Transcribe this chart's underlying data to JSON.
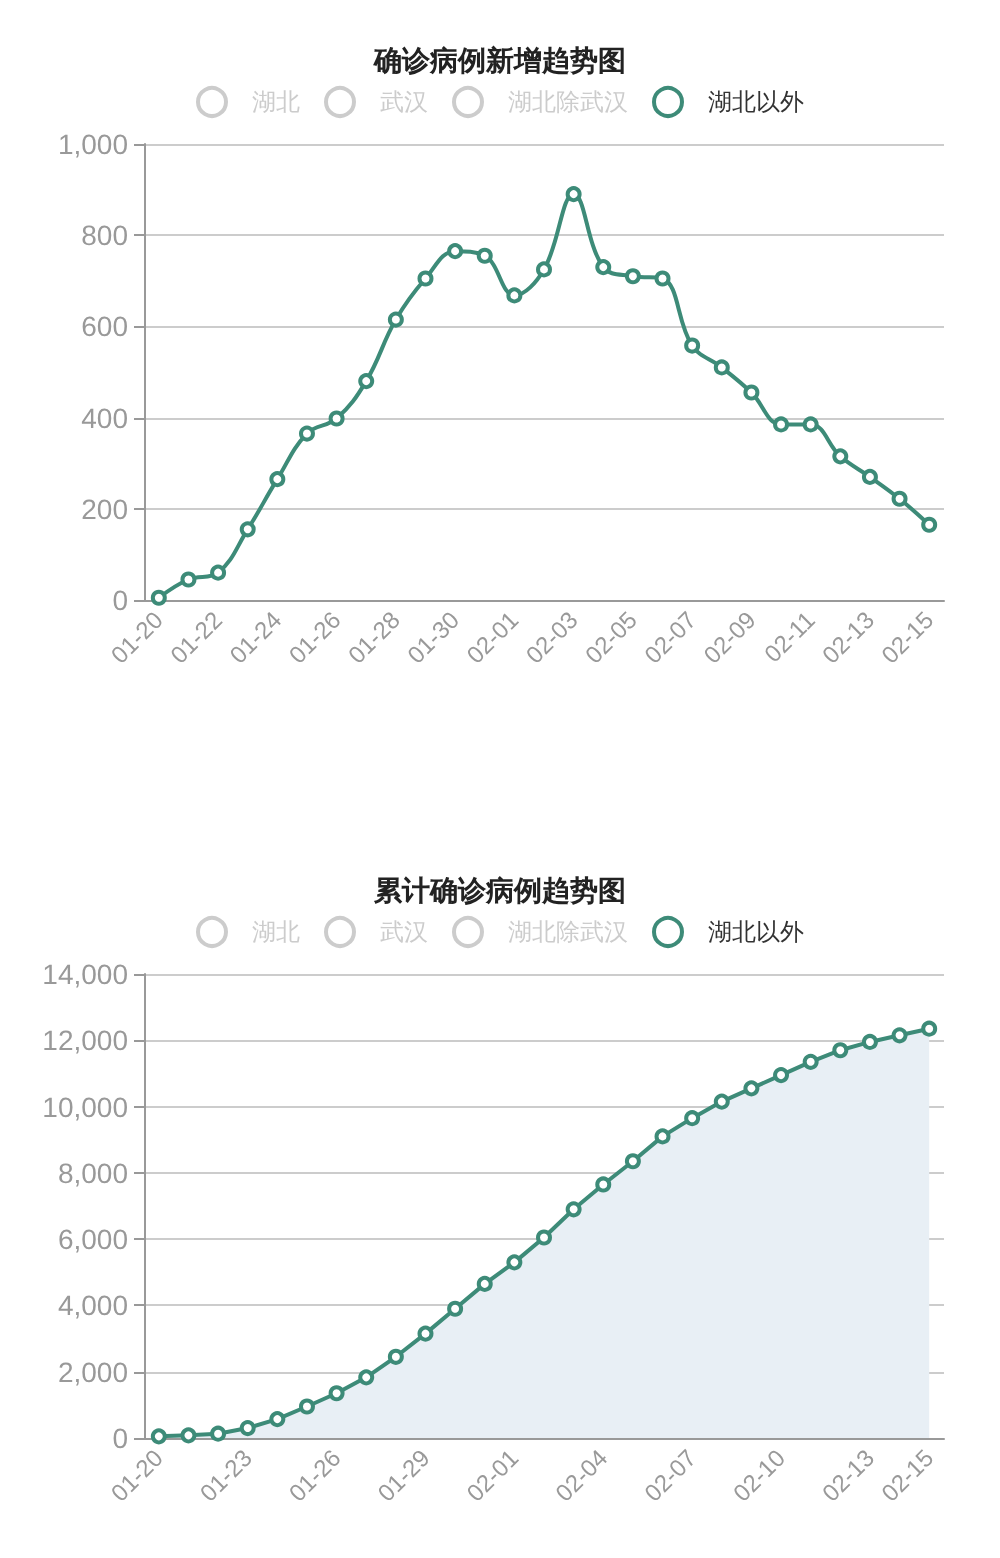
{
  "chart_data": [
    {
      "type": "line",
      "title": "确诊病例新增趋势图",
      "categories": [
        "01-20",
        null,
        "01-22",
        null,
        "01-24",
        null,
        "01-26",
        null,
        "01-28",
        null,
        "01-30",
        null,
        "02-01",
        null,
        "02-03",
        null,
        "02-05",
        null,
        "02-07",
        null,
        "02-09",
        null,
        "02-11",
        null,
        "02-13",
        null,
        "02-15"
      ],
      "series": [
        {
          "name": "湖北",
          "color": "#cccccc",
          "values": [
            null,
            null,
            null,
            null,
            null,
            null,
            null,
            null,
            null,
            null,
            null,
            null,
            null,
            null,
            null,
            null,
            null,
            null,
            null,
            null,
            null,
            null,
            null,
            null,
            null,
            null,
            null
          ]
        },
        {
          "name": "武汉",
          "color": "#cccccc",
          "values": [
            null,
            null,
            null,
            null,
            null,
            null,
            null,
            null,
            null,
            null,
            null,
            null,
            null,
            null,
            null,
            null,
            null,
            null,
            null,
            null,
            null,
            null,
            null,
            null,
            null,
            null,
            null
          ]
        },
        {
          "name": "湖北除武汉",
          "color": "#cccccc",
          "values": [
            null,
            null,
            null,
            null,
            null,
            null,
            null,
            null,
            null,
            null,
            null,
            null,
            null,
            null,
            null,
            null,
            null,
            null,
            null,
            null,
            null,
            null,
            null,
            null,
            null,
            null,
            null
          ]
        },
        {
          "name": "湖北以外",
          "color": "#3d8b78",
          "values": [
            5,
            45,
            60,
            155,
            265,
            365,
            398,
            480,
            615,
            705,
            765,
            755,
            668,
            725,
            890,
            730,
            710,
            705,
            558,
            510,
            455,
            385,
            385,
            315,
            270,
            222,
            165
          ]
        }
      ],
      "ylim": [
        0,
        1000
      ],
      "yticks": [
        0,
        200,
        400,
        600,
        800,
        {
          "value": 1000,
          "label": "1,000"
        }
      ],
      "grid": "y",
      "legend": "top",
      "marker": "circle"
    },
    {
      "type": "area",
      "title": "累计确诊病例趋势图",
      "categories": [
        "01-20",
        null,
        null,
        "01-23",
        null,
        null,
        "01-26",
        null,
        null,
        "01-29",
        null,
        null,
        "02-01",
        null,
        null,
        "02-04",
        null,
        null,
        "02-07",
        null,
        null,
        "02-10",
        null,
        null,
        "02-13",
        null,
        "02-15"
      ],
      "series": [
        {
          "name": "湖北",
          "color": "#cccccc",
          "values": [
            null,
            null,
            null,
            null,
            null,
            null,
            null,
            null,
            null,
            null,
            null,
            null,
            null,
            null,
            null,
            null,
            null,
            null,
            null,
            null,
            null,
            null,
            null,
            null,
            null,
            null,
            null
          ]
        },
        {
          "name": "武汉",
          "color": "#cccccc",
          "values": [
            null,
            null,
            null,
            null,
            null,
            null,
            null,
            null,
            null,
            null,
            null,
            null,
            null,
            null,
            null,
            null,
            null,
            null,
            null,
            null,
            null,
            null,
            null,
            null,
            null,
            null,
            null
          ]
        },
        {
          "name": "湖北除武汉",
          "color": "#cccccc",
          "values": [
            null,
            null,
            null,
            null,
            null,
            null,
            null,
            null,
            null,
            null,
            null,
            null,
            null,
            null,
            null,
            null,
            null,
            null,
            null,
            null,
            null,
            null,
            null,
            null,
            null,
            null,
            null
          ]
        },
        {
          "name": "湖北以外",
          "color": "#3d8b78",
          "values": [
            50,
            80,
            130,
            300,
            570,
            950,
            1350,
            1830,
            2450,
            3150,
            3900,
            4650,
            5300,
            6050,
            6900,
            7650,
            8350,
            9100,
            9650,
            10150,
            10550,
            10950,
            11350,
            11700,
            11950,
            12150,
            12350
          ]
        }
      ],
      "ylim": [
        0,
        14000
      ],
      "yticks": [
        0,
        {
          "value": 2000,
          "label": "2,000"
        },
        {
          "value": 4000,
          "label": "4,000"
        },
        {
          "value": 6000,
          "label": "6,000"
        },
        {
          "value": 8000,
          "label": "8,000"
        },
        {
          "value": 10000,
          "label": "10,000"
        },
        {
          "value": 12000,
          "label": "12,000"
        },
        {
          "value": 14000,
          "label": "14,000"
        }
      ],
      "grid": "y",
      "legend": "top",
      "marker": "circle"
    }
  ]
}
